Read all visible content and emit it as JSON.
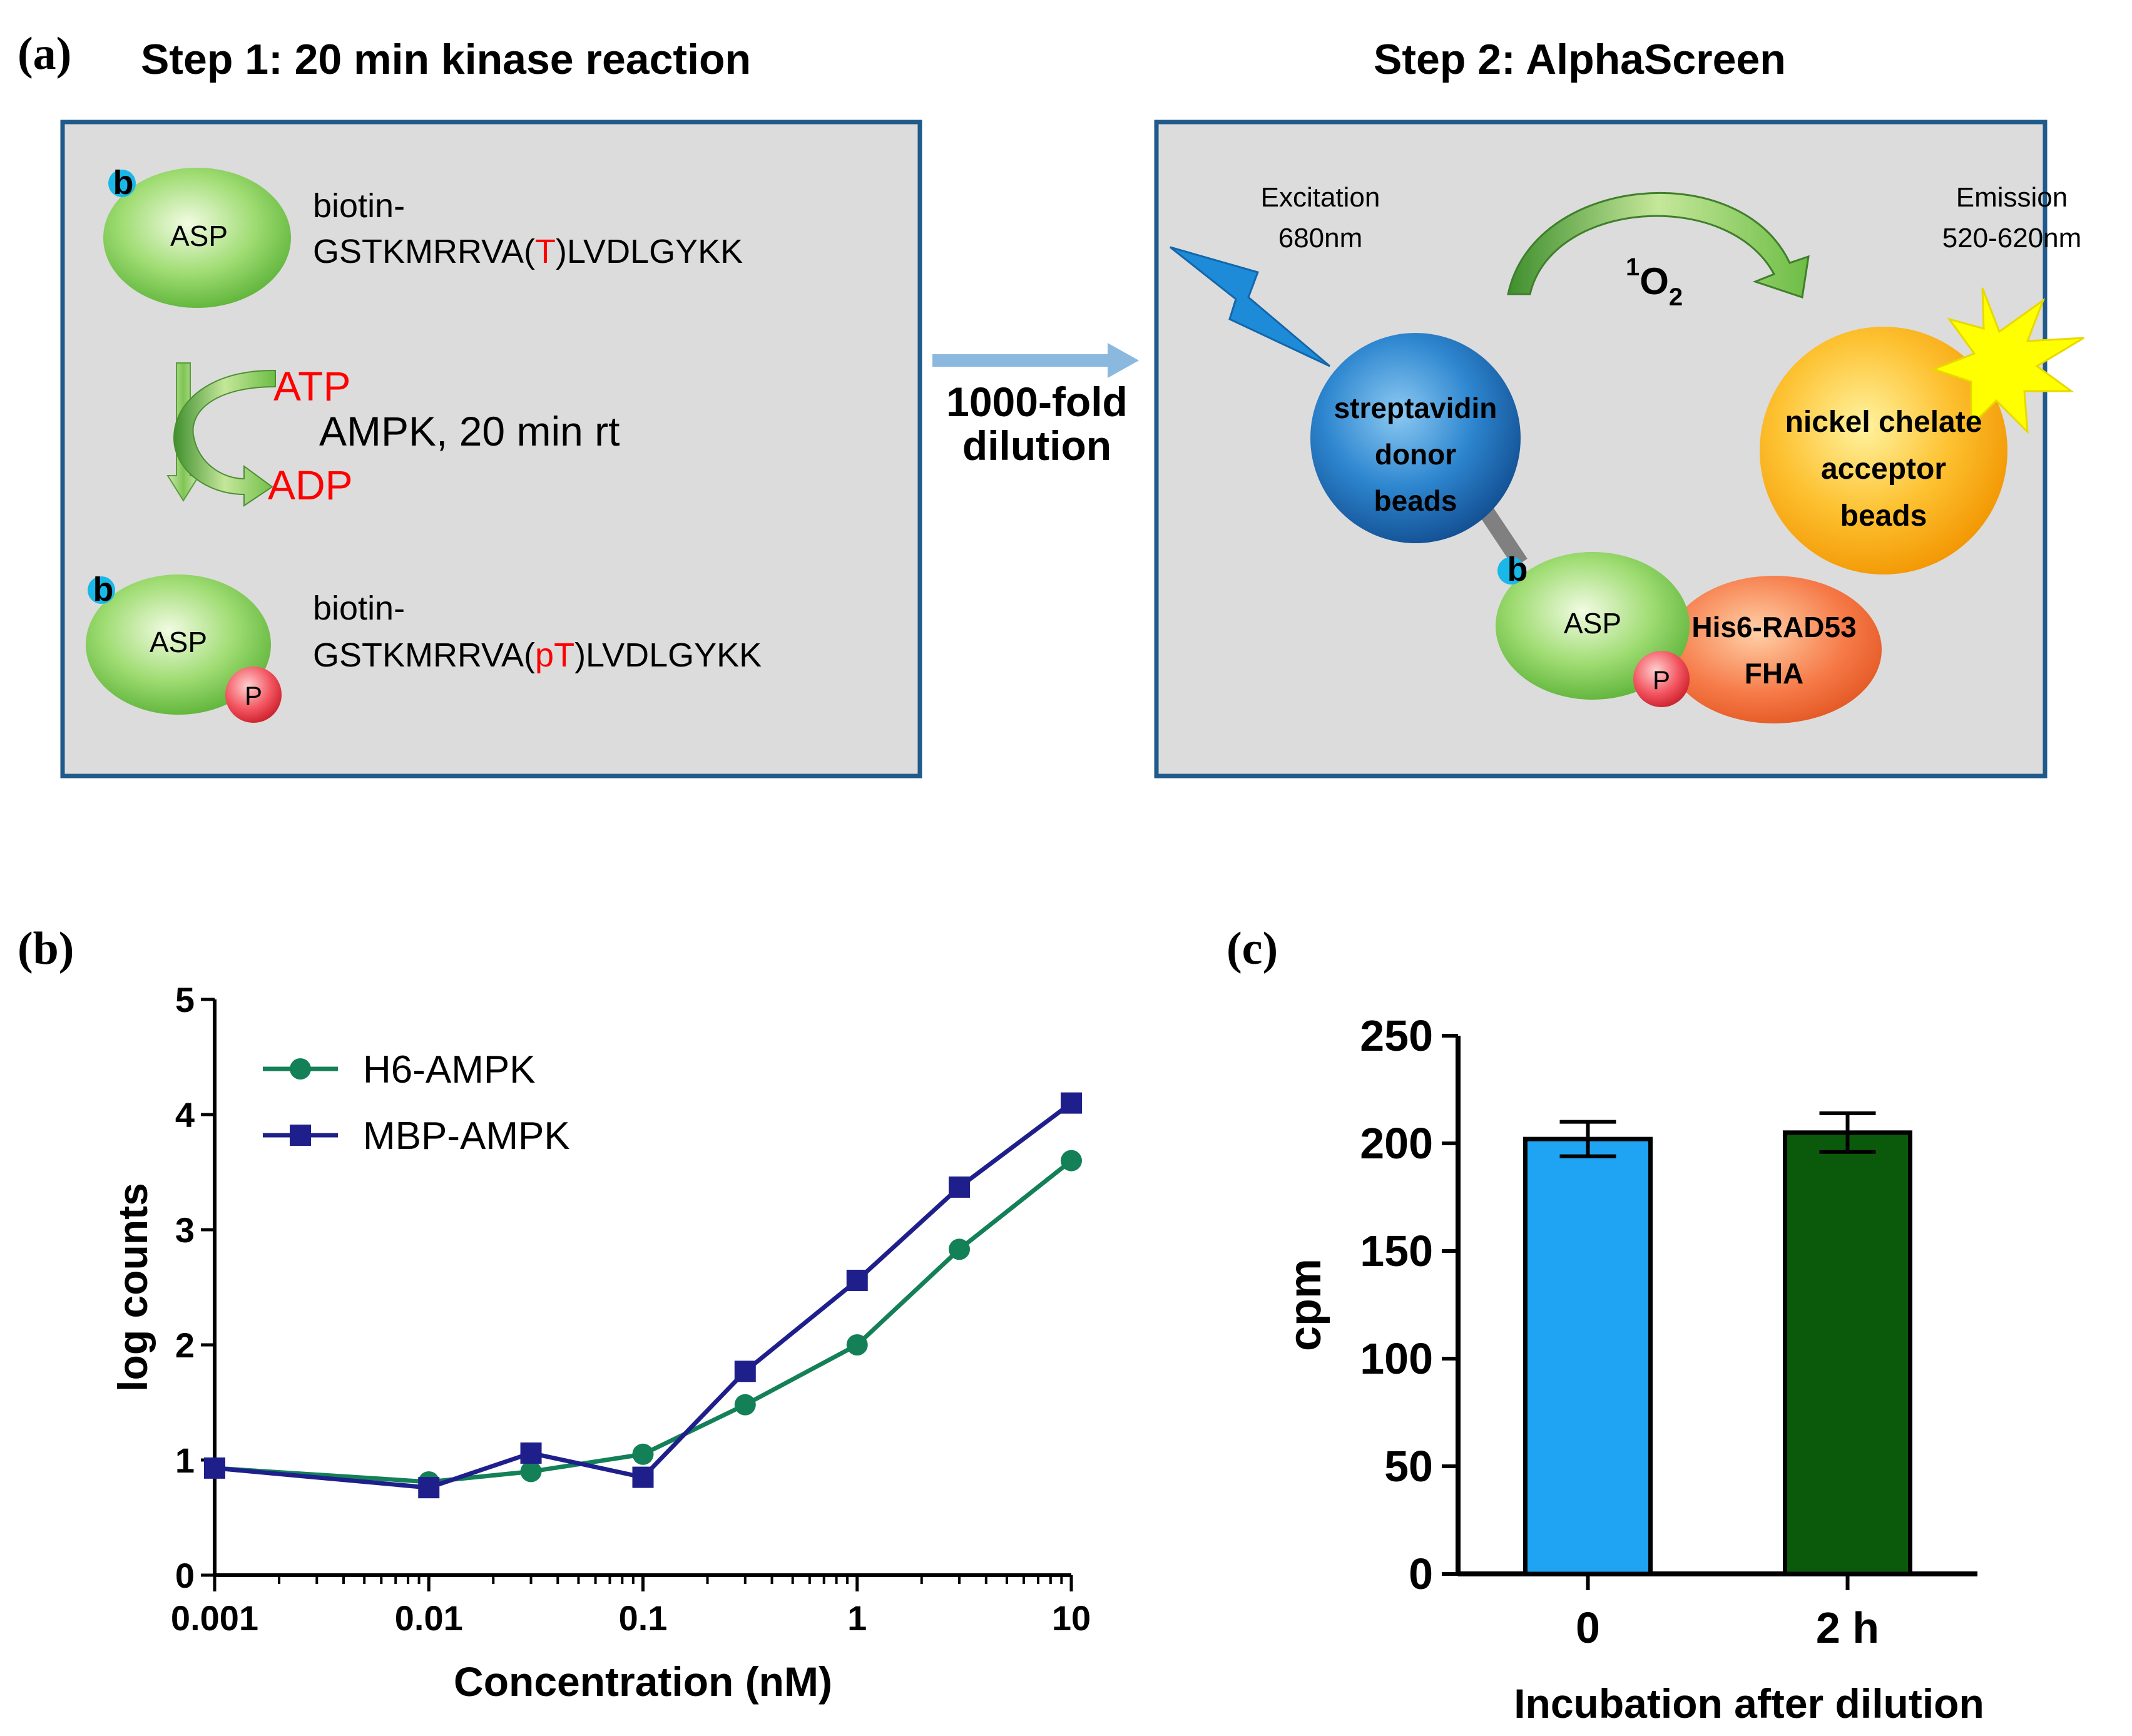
{
  "colors": {
    "panel_fill": "#dcdcdc",
    "panel_border": "#1f5a8a",
    "red": "#ff0000",
    "green_series": "#138057",
    "blue_series": "#1f1f8c",
    "bar0": "#1ea4f2",
    "bar1": "#0b5a0b",
    "arrow_blue": "#8ab8de"
  },
  "panel_a": {
    "label": "(a)",
    "step1_title": "Step 1: 20 min kinase reaction",
    "step2_title": "Step 2: AlphaScreen",
    "biotin_mark": "b",
    "asp_label": "ASP",
    "phospho_mark": "P",
    "substrate_prefix": "biotin-",
    "substrate": {
      "before": "GSTKMRRVA(",
      "residue": "T",
      "after": ")LVDLGYKK"
    },
    "product": {
      "before": "GSTKMRRVA(",
      "residue": "pT",
      "after": ")LVDLGYKK"
    },
    "atp": "ATP",
    "adp": "ADP",
    "reaction_condition": "AMPK, 20 min rt",
    "dilution_line1": "1000-fold",
    "dilution_line2": "dilution",
    "excitation_line1": "Excitation",
    "excitation_line2": "680nm",
    "emission_line1": "Emission",
    "emission_line2": "520-620nm",
    "singlet_oxygen_sup": "1",
    "singlet_oxygen_main": "O",
    "singlet_oxygen_sub": "2",
    "donor_line1": "streptavidin",
    "donor_line2": "donor",
    "donor_line3": "beads",
    "acceptor_line1": "nickel chelate",
    "acceptor_line2": "acceptor",
    "acceptor_line3": "beads",
    "fha_line1": "His6-RAD53",
    "fha_line2": "FHA"
  },
  "panel_b_label": "(b)",
  "panel_c_label": "(c)",
  "chart_data": [
    {
      "type": "line",
      "panel": "b",
      "xlabel": "Concentration (nM)",
      "ylabel": "log counts",
      "xscale": "log",
      "xlim": [
        0.001,
        10
      ],
      "ylim": [
        0,
        5
      ],
      "xticks": [
        "0.001",
        "0.01",
        "0.1",
        "1",
        "10"
      ],
      "yticks": [
        "0",
        "1",
        "2",
        "3",
        "4",
        "5"
      ],
      "legend_position": "top-left",
      "series": [
        {
          "name": "H6-AMPK",
          "marker": "circle",
          "x": [
            0.001,
            0.01,
            0.03,
            0.1,
            0.3,
            1,
            3,
            10
          ],
          "y": [
            0.93,
            0.81,
            0.9,
            1.05,
            1.48,
            2.0,
            2.83,
            3.6
          ]
        },
        {
          "name": "MBP-AMPK",
          "marker": "square",
          "x": [
            0.001,
            0.01,
            0.03,
            0.1,
            0.3,
            1,
            3,
            10
          ],
          "y": [
            0.93,
            0.76,
            1.06,
            0.85,
            1.77,
            2.56,
            3.37,
            4.1
          ]
        }
      ]
    },
    {
      "type": "bar",
      "panel": "c",
      "xlabel": "Incubation after dilution",
      "ylabel": "cpm",
      "ylim": [
        0,
        250
      ],
      "yticks": [
        "0",
        "50",
        "100",
        "150",
        "200",
        "250"
      ],
      "categories": [
        "0",
        "2 h"
      ],
      "values": [
        202,
        205
      ],
      "errors": [
        8,
        9
      ]
    }
  ]
}
